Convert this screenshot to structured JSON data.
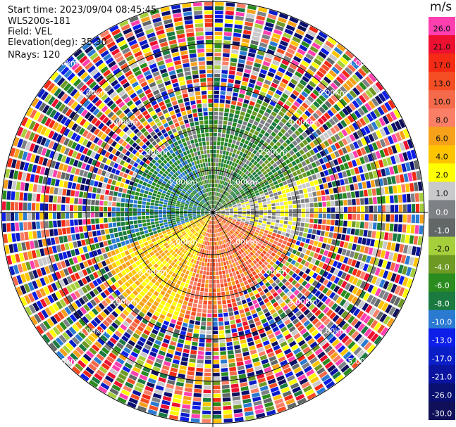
{
  "info": {
    "start_time": "Start time: 2023/09/04 08:45:45",
    "instrument": "WLS200s-181",
    "field": "Field: VEL",
    "elevation": "Elevation(deg): 35.30",
    "nrays": "NRays: 120"
  },
  "colorbar": {
    "unit": "m/s",
    "levels": [
      {
        "label": "26.0",
        "color": "#ff3fb0"
      },
      {
        "label": "21.0",
        "color": "#ee1030"
      },
      {
        "label": "17.0",
        "color": "#f42a14"
      },
      {
        "label": "13.0",
        "color": "#f54e24"
      },
      {
        "label": "10.0",
        "color": "#f46a4a"
      },
      {
        "label": "8.0",
        "color": "#fb7f66"
      },
      {
        "label": "6.0",
        "color": "#f7a11a"
      },
      {
        "label": "4.0",
        "color": "#ffc400"
      },
      {
        "label": "2.0",
        "color": "#ffff00"
      },
      {
        "label": "1.0",
        "color": "#c9c9cc"
      },
      {
        "label": "0.0",
        "color": "#7d8084"
      },
      {
        "label": "-1.0",
        "color": "#626868"
      },
      {
        "label": "-2.0",
        "color": "#a6cf3c"
      },
      {
        "label": "-4.0",
        "color": "#6e9a24"
      },
      {
        "label": "-6.0",
        "color": "#2a8c1e"
      },
      {
        "label": "-8.0",
        "color": "#1a7a40"
      },
      {
        "label": "-10.0",
        "color": "#2a7ad2"
      },
      {
        "label": "-13.0",
        "color": "#0c1ee8"
      },
      {
        "label": "-17.0",
        "color": "#0a1ec8"
      },
      {
        "label": "-21.0",
        "color": "#0a14a0"
      },
      {
        "label": "-26.0",
        "color": "#091070"
      },
      {
        "label": "-30.0",
        "color": "#10105a"
      }
    ]
  },
  "chart_data": {
    "type": "heatmap",
    "subtype": "radar PPI",
    "field": "VEL",
    "units": "m/s",
    "elevation_deg": 35.3,
    "nrays": 120,
    "range_ring_labels": [
      "1.00km",
      "2.00km",
      "3.00km",
      "4.00km",
      "5.00km"
    ],
    "color_levels": [
      26.0,
      21.0,
      17.0,
      13.0,
      10.0,
      8.0,
      6.0,
      4.0,
      2.0,
      1.0,
      0.0,
      -1.0,
      -2.0,
      -4.0,
      -6.0,
      -8.0,
      -10.0,
      -13.0,
      -17.0,
      -21.0,
      -26.0,
      -30.0
    ],
    "spokes_deg": [
      0,
      30,
      60,
      90,
      120,
      150,
      180,
      210,
      240,
      270,
      300,
      330
    ],
    "grid": true
  }
}
